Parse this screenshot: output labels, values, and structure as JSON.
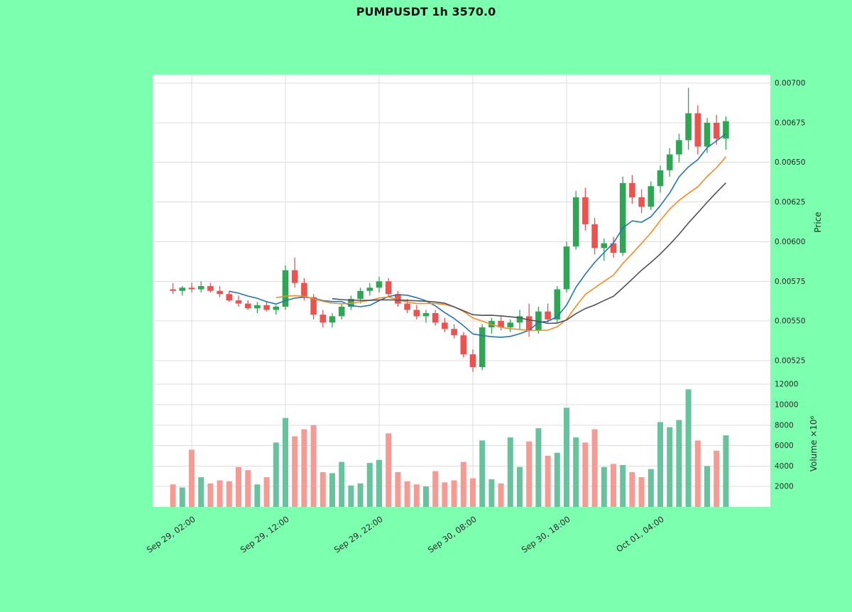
{
  "title": "PUMPUSDT 1h 3570.0",
  "colors": {
    "background": "#7dffb0",
    "plot_background": "#ffffff",
    "grid": "#dcdcdc",
    "title_text": "#111111",
    "tick_text": "#262626"
  },
  "chart_data": {
    "type": "candlestick",
    "symbol": "PUMPUSDT",
    "timeframe": "1h",
    "title": "PUMPUSDT 1h 3570.0",
    "colors": {
      "up": "#2ea653",
      "down": "#ed524e",
      "volume_up": "#67c39e",
      "volume_down": "#f59b94",
      "ma_fast": "#1f77b4",
      "ma_mid": "#fb8b1e",
      "ma_slow": "#50505e"
    },
    "x_ticks": [
      {
        "index": 2,
        "label": "Sep 29, 02:00"
      },
      {
        "index": 12,
        "label": "Sep 29, 12:00"
      },
      {
        "index": 22,
        "label": "Sep 29, 22:00"
      },
      {
        "index": 32,
        "label": "Sep 30, 08:00"
      },
      {
        "index": 42,
        "label": "Sep 30, 18:00"
      },
      {
        "index": 52,
        "label": "Oct 01, 04:00"
      }
    ],
    "price_axis": {
      "label": "Price",
      "ticks": [
        {
          "value": 0.00525,
          "label": "0.00525"
        },
        {
          "value": 0.0055,
          "label": "0.00550"
        },
        {
          "value": 0.00575,
          "label": "0.00575"
        },
        {
          "value": 0.006,
          "label": "0.00600"
        },
        {
          "value": 0.00625,
          "label": "0.00625"
        },
        {
          "value": 0.0065,
          "label": "0.00650"
        },
        {
          "value": 0.00675,
          "label": "0.00675"
        },
        {
          "value": 0.007,
          "label": "0.00700"
        }
      ]
    },
    "volume_axis": {
      "label": "Volume ×10⁶",
      "ticks": [
        {
          "value": 2000,
          "label": "2000"
        },
        {
          "value": 4000,
          "label": "4000"
        },
        {
          "value": 6000,
          "label": "6000"
        },
        {
          "value": 8000,
          "label": "8000"
        },
        {
          "value": 10000,
          "label": "10000"
        },
        {
          "value": 12000,
          "label": "12000"
        }
      ]
    },
    "moving_averages": [
      {
        "name": "ma-fast",
        "period": 7,
        "color_key": "ma_fast"
      },
      {
        "name": "ma-mid",
        "period": 12,
        "color_key": "ma_mid"
      },
      {
        "name": "ma-slow",
        "period": 18,
        "color_key": "ma_slow"
      }
    ],
    "candles": [
      [
        0.0057,
        0.00574,
        0.00567,
        0.00569,
        2200
      ],
      [
        0.00569,
        0.00572,
        0.00566,
        0.00571,
        1900
      ],
      [
        0.00571,
        0.00574,
        0.00568,
        0.0057,
        5600
      ],
      [
        0.0057,
        0.00575,
        0.00568,
        0.00572,
        2900
      ],
      [
        0.00572,
        0.00574,
        0.00568,
        0.00569,
        2300
      ],
      [
        0.00569,
        0.00572,
        0.00565,
        0.00567,
        2600
      ],
      [
        0.00567,
        0.00569,
        0.00562,
        0.00563,
        2500
      ],
      [
        0.00563,
        0.00566,
        0.00559,
        0.00561,
        3900
      ],
      [
        0.00561,
        0.00563,
        0.00557,
        0.00558,
        3600
      ],
      [
        0.00558,
        0.00562,
        0.00555,
        0.0056,
        2200
      ],
      [
        0.0056,
        0.00562,
        0.00556,
        0.00557,
        2900
      ],
      [
        0.00557,
        0.0056,
        0.00554,
        0.00559,
        6300
      ],
      [
        0.00559,
        0.00585,
        0.00557,
        0.00582,
        8700
      ],
      [
        0.00582,
        0.0059,
        0.00571,
        0.00574,
        6900
      ],
      [
        0.00574,
        0.00577,
        0.00563,
        0.00565,
        7600
      ],
      [
        0.00565,
        0.00567,
        0.00551,
        0.00554,
        8000
      ],
      [
        0.00554,
        0.00557,
        0.00546,
        0.00549,
        3400
      ],
      [
        0.00549,
        0.00555,
        0.00546,
        0.00553,
        3300
      ],
      [
        0.00553,
        0.00561,
        0.00551,
        0.00559,
        4400
      ],
      [
        0.00559,
        0.00566,
        0.00557,
        0.00564,
        2100
      ],
      [
        0.00564,
        0.00571,
        0.00561,
        0.00569,
        2300
      ],
      [
        0.00569,
        0.00574,
        0.00566,
        0.00571,
        4300
      ],
      [
        0.00571,
        0.00578,
        0.00568,
        0.00575,
        4600
      ],
      [
        0.00575,
        0.00577,
        0.00565,
        0.00567,
        7200
      ],
      [
        0.00567,
        0.00569,
        0.00559,
        0.00561,
        3400
      ],
      [
        0.00561,
        0.00564,
        0.00555,
        0.00557,
        2500
      ],
      [
        0.00557,
        0.0056,
        0.00551,
        0.00553,
        2200
      ],
      [
        0.00553,
        0.00557,
        0.00549,
        0.00555,
        2000
      ],
      [
        0.00555,
        0.00557,
        0.00547,
        0.00549,
        3500
      ],
      [
        0.00549,
        0.00552,
        0.00543,
        0.00545,
        2400
      ],
      [
        0.00545,
        0.00548,
        0.00539,
        0.00541,
        2600
      ],
      [
        0.00541,
        0.00543,
        0.00527,
        0.00529,
        4400
      ],
      [
        0.00529,
        0.00532,
        0.00518,
        0.00521,
        2800
      ],
      [
        0.00521,
        0.00548,
        0.00519,
        0.00546,
        6500
      ],
      [
        0.00546,
        0.00552,
        0.00542,
        0.0055,
        2700
      ],
      [
        0.0055,
        0.00553,
        0.00544,
        0.00546,
        2300
      ],
      [
        0.00546,
        0.00551,
        0.00543,
        0.00549,
        6800
      ],
      [
        0.00549,
        0.00557,
        0.00545,
        0.00553,
        3900
      ],
      [
        0.00553,
        0.00561,
        0.0054,
        0.00544,
        6400
      ],
      [
        0.00544,
        0.00559,
        0.00542,
        0.00556,
        7700
      ],
      [
        0.00556,
        0.00561,
        0.00549,
        0.00551,
        5000
      ],
      [
        0.00551,
        0.00572,
        0.00549,
        0.0057,
        5300
      ],
      [
        0.0057,
        0.006,
        0.00568,
        0.00597,
        9700
      ],
      [
        0.00597,
        0.00632,
        0.00595,
        0.00628,
        6800
      ],
      [
        0.00628,
        0.00634,
        0.00607,
        0.00611,
        6300
      ],
      [
        0.00611,
        0.00615,
        0.00592,
        0.00596,
        7600
      ],
      [
        0.00596,
        0.00602,
        0.00588,
        0.00599,
        3900
      ],
      [
        0.00599,
        0.00603,
        0.0059,
        0.00593,
        4200
      ],
      [
        0.00593,
        0.00641,
        0.00591,
        0.00637,
        4100
      ],
      [
        0.00637,
        0.00642,
        0.00624,
        0.00628,
        3400
      ],
      [
        0.00628,
        0.00633,
        0.00618,
        0.00622,
        2900
      ],
      [
        0.00622,
        0.00638,
        0.0062,
        0.00635,
        3700
      ],
      [
        0.00635,
        0.00648,
        0.00631,
        0.00645,
        8300
      ],
      [
        0.00645,
        0.00659,
        0.00641,
        0.00655,
        7800
      ],
      [
        0.00655,
        0.00668,
        0.0065,
        0.00664,
        8500
      ],
      [
        0.00664,
        0.00697,
        0.00658,
        0.00681,
        11500
      ],
      [
        0.00681,
        0.00686,
        0.00655,
        0.0066,
        6500
      ],
      [
        0.0066,
        0.00678,
        0.00656,
        0.00675,
        4000
      ],
      [
        0.00675,
        0.0068,
        0.00661,
        0.00665,
        5500
      ],
      [
        0.00665,
        0.00679,
        0.00658,
        0.00676,
        7000
      ]
    ]
  }
}
